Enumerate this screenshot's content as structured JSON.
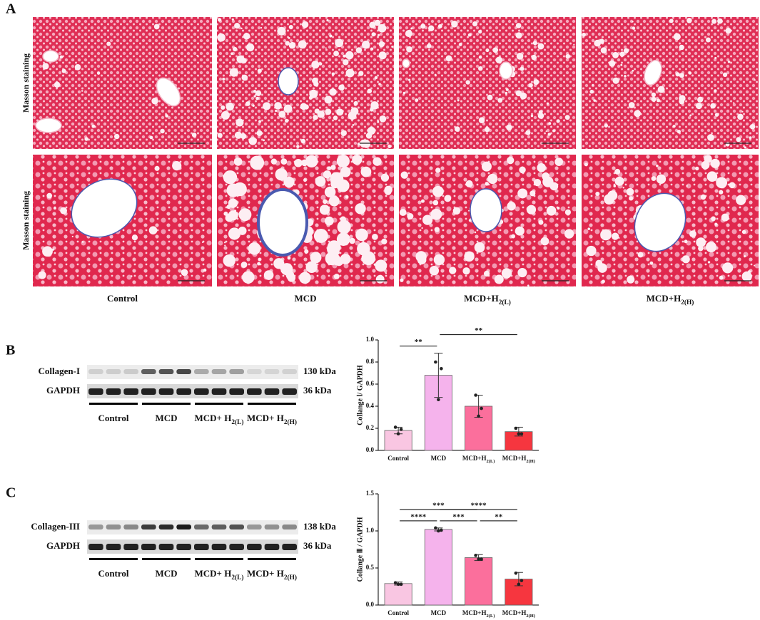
{
  "panel_a": {
    "label": "A",
    "row_labels": [
      "Masson staining",
      "Masson staining"
    ],
    "columns": [
      [
        "Control"
      ],
      [
        "MCD"
      ],
      [
        "MCD+H",
        "2(L)"
      ],
      [
        "MCD+H",
        "2(H)"
      ]
    ]
  },
  "panel_b": {
    "label": "B",
    "blot": {
      "rows": [
        "Collagen-I",
        "GAPDH"
      ],
      "sizes": [
        "130 kDa",
        "36 kDa"
      ],
      "groups": [
        [
          "Control"
        ],
        [
          "MCD"
        ],
        [
          "MCD+ H",
          "2(L)"
        ],
        [
          "MCD+ H",
          "2(H)"
        ]
      ]
    }
  },
  "panel_c": {
    "label": "C",
    "blot": {
      "rows": [
        "Collagen-III",
        "GAPDH"
      ],
      "sizes": [
        "138 kDa",
        "36 kDa"
      ],
      "groups": [
        [
          "Control"
        ],
        [
          "MCD"
        ],
        [
          "MCD+ H",
          "2(L)"
        ],
        [
          "MCD+ H",
          "2(H)"
        ]
      ]
    }
  },
  "chart_data": [
    {
      "type": "bar",
      "y_label": "Collange Ⅰ/ GAPDH",
      "categories": [
        [
          "Control"
        ],
        [
          "MCD"
        ],
        [
          "MCD+H",
          "2(L)"
        ],
        [
          "MCD+H",
          "2(H)"
        ]
      ],
      "values": [
        0.18,
        0.68,
        0.4,
        0.17
      ],
      "errors": [
        0.03,
        0.2,
        0.1,
        0.04
      ],
      "points": [
        [
          0.21,
          0.19,
          0.15
        ],
        [
          0.8,
          0.74,
          0.46
        ],
        [
          0.5,
          0.38,
          0.31
        ],
        [
          0.2,
          0.15,
          0.15
        ]
      ],
      "colors": [
        "#f9c6e2",
        "#f5b3ec",
        "#fb6f9c",
        "#f6363f"
      ],
      "ylim": [
        0,
        1.0
      ],
      "yticks": [
        {
          "value": 0,
          "label": "0.0"
        },
        {
          "value": 0.2,
          "label": "0.2"
        },
        {
          "value": 0.4,
          "label": "0.4"
        },
        {
          "value": 0.6,
          "label": "0.6"
        },
        {
          "value": 0.8,
          "label": "0.8"
        },
        {
          "value": 1.0,
          "label": "1.0"
        }
      ],
      "significance": [
        {
          "text": "**",
          "between": [
            0,
            1
          ]
        },
        {
          "text": "**",
          "between": [
            1,
            3
          ]
        }
      ]
    },
    {
      "type": "bar",
      "y_label": "Collange Ⅲ / GAPDH",
      "categories": [
        [
          "Control"
        ],
        [
          "MCD"
        ],
        [
          "MCD+H",
          "2(L)"
        ],
        [
          "MCD+H",
          "2(H)"
        ]
      ],
      "values": [
        0.29,
        1.02,
        0.64,
        0.35
      ],
      "errors": [
        0.02,
        0.02,
        0.04,
        0.09
      ],
      "points": [
        [
          0.3,
          0.28,
          0.28
        ],
        [
          1.04,
          1.01,
          1.0
        ],
        [
          0.67,
          0.62,
          0.62
        ],
        [
          0.43,
          0.33,
          0.28
        ]
      ],
      "colors": [
        "#f9c6e2",
        "#f5b3ec",
        "#fb6f9c",
        "#f6363f"
      ],
      "ylim": [
        0,
        1.5
      ],
      "yticks": [
        {
          "value": 0,
          "label": "0.0"
        },
        {
          "value": 0.5,
          "label": "0.5"
        },
        {
          "value": 1.0,
          "label": "1.0"
        },
        {
          "value": 1.5,
          "label": "1.5"
        }
      ],
      "significance": [
        {
          "text": "***",
          "between": [
            0,
            2
          ]
        },
        {
          "text": "****",
          "between": [
            1,
            3
          ]
        },
        {
          "text": "****",
          "between": [
            0,
            1
          ]
        },
        {
          "text": "***",
          "between": [
            1,
            2
          ]
        },
        {
          "text": "**",
          "between": [
            2,
            3
          ]
        }
      ]
    }
  ]
}
